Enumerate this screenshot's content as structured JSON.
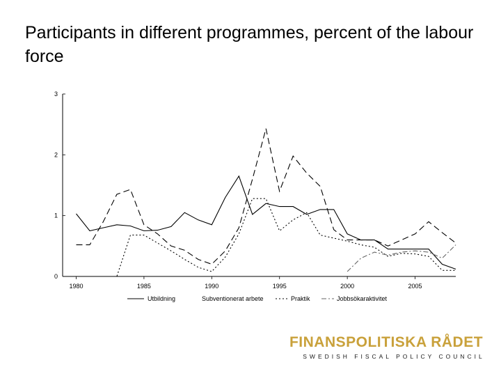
{
  "slide": {
    "title": "Participants in different programmes, percent of the labour force"
  },
  "logo": {
    "name": "FINANSPOLITISKA RÅDET",
    "tagline": "SWEDISH FISCAL POLICY COUNCIL",
    "color": "#c9a13b"
  },
  "chart_data": {
    "type": "line",
    "title": "",
    "xlabel": "",
    "ylabel": "",
    "xlim": [
      1979,
      2008
    ],
    "ylim": [
      0,
      3
    ],
    "x_ticks": [
      1980,
      1985,
      1990,
      1995,
      2000,
      2005
    ],
    "y_ticks": [
      0,
      1,
      2,
      3
    ],
    "y_tick_labels": [
      "0",
      "1",
      "2",
      "3"
    ],
    "grid": false,
    "legend_position": "bottom",
    "series": [
      {
        "name": "Utbildning",
        "dash": "solid",
        "x": [
          1980,
          1981,
          1982,
          1983,
          1984,
          1985,
          1986,
          1987,
          1988,
          1989,
          1990,
          1991,
          1992,
          1993,
          1994,
          1995,
          1996,
          1997,
          1998,
          1999,
          2000,
          2001,
          2002,
          2003,
          2004,
          2005,
          2006,
          2007,
          2008
        ],
        "y": [
          1.03,
          0.75,
          0.8,
          0.85,
          0.83,
          0.75,
          0.76,
          0.82,
          1.05,
          0.93,
          0.85,
          1.3,
          1.65,
          1.02,
          1.2,
          1.15,
          1.15,
          1.02,
          1.1,
          1.1,
          0.7,
          0.6,
          0.6,
          0.45,
          0.45,
          0.45,
          0.45,
          0.2,
          0.12
        ]
      },
      {
        "name": "Subventionerat arbete",
        "dash": "long-dash",
        "x": [
          1980,
          1981,
          1982,
          1983,
          1984,
          1985,
          1986,
          1987,
          1988,
          1989,
          1990,
          1991,
          1992,
          1993,
          1994,
          1995,
          1996,
          1997,
          1998,
          1999,
          2000,
          2001,
          2002,
          2003,
          2004,
          2005,
          2006,
          2007,
          2008
        ],
        "y": [
          0.52,
          0.52,
          0.9,
          1.35,
          1.43,
          0.85,
          0.7,
          0.5,
          0.43,
          0.28,
          0.2,
          0.42,
          0.8,
          1.6,
          2.43,
          1.4,
          1.98,
          1.7,
          1.48,
          0.77,
          0.6,
          0.6,
          0.6,
          0.5,
          0.6,
          0.7,
          0.9,
          0.72,
          0.55
        ]
      },
      {
        "name": "Praktik",
        "dash": "dotted",
        "x": [
          1982,
          1983,
          1984,
          1985,
          1986,
          1987,
          1988,
          1989,
          1990,
          1991,
          1992,
          1993,
          1994,
          1995,
          1996,
          1997,
          1998,
          1999,
          2000,
          2001,
          2002,
          2003,
          2004,
          2005,
          2006,
          2007,
          2008
        ],
        "y": [
          0,
          0,
          0.68,
          0.68,
          0.55,
          0.42,
          0.28,
          0.15,
          0.08,
          0.32,
          0.7,
          1.28,
          1.28,
          0.75,
          0.93,
          1.05,
          0.68,
          0.63,
          0.58,
          0.52,
          0.48,
          0.33,
          0.38,
          0.37,
          0.33,
          0.1,
          0.1
        ]
      },
      {
        "name": "Jobbsökaraktivitet",
        "dash": "dash-dot",
        "x": [
          2000,
          2001,
          2002,
          2003,
          2004,
          2005,
          2006,
          2007,
          2008
        ],
        "y": [
          0.08,
          0.3,
          0.4,
          0.35,
          0.4,
          0.42,
          0.4,
          0.3,
          0.52
        ]
      }
    ]
  }
}
